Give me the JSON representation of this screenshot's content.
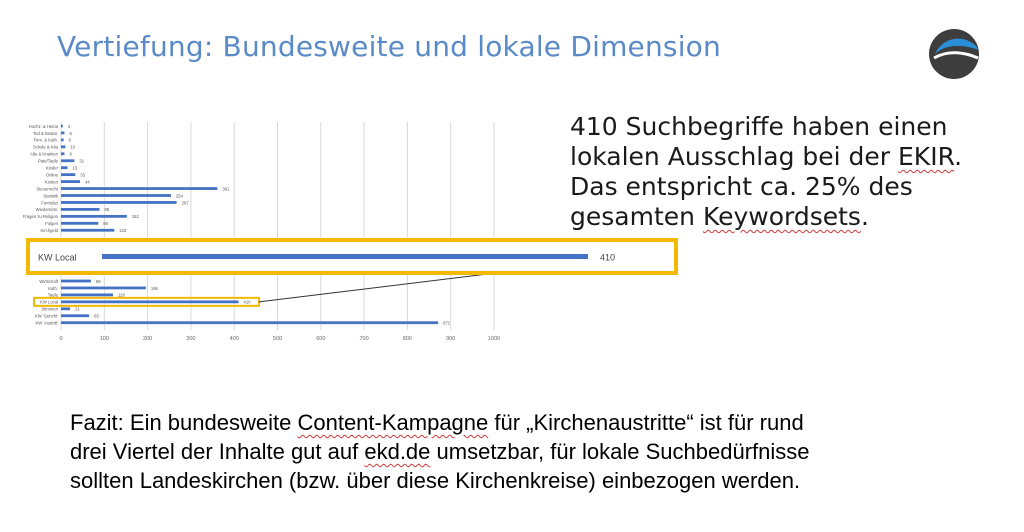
{
  "slide": {
    "title": "Vertiefung: Bundesweite und lokale Dimension",
    "logo": "circle-logo",
    "key_lines": [
      "410 Suchbegriffe haben einen",
      [
        "lokalen Ausschlag bei der ",
        "EKIR",
        "."
      ],
      "Das entspricht ca. 25% des",
      [
        "gesamten ",
        "Keywordsets",
        "."
      ]
    ],
    "fazit_lines": [
      [
        "Fazit: Ein bundesweite ",
        "Content-Kampagne",
        " für „Kirchenaustritte“ ist für rund"
      ],
      [
        "drei Viertel der Inhalte gut auf ",
        "ekd.de",
        " umsetzbar, für lokale Suchbedürfnisse"
      ],
      [
        "sollten Landeskirchen (bzw. über diese Kirchenkreise) einbezogen werden."
      ]
    ]
  },
  "colors": {
    "title": "#5b8ac8",
    "bar": "#4472c4",
    "highlight": "#f5b800",
    "grid": "#d9d9d9",
    "logo_dark": "#3d3d3d",
    "logo_blue": "#2b8fd8"
  },
  "chart_data": {
    "type": "bar",
    "orientation": "horizontal",
    "xlim": [
      0,
      1000
    ],
    "x_ticks": [
      0,
      100,
      200,
      300,
      400,
      500,
      600,
      700,
      800,
      900,
      1000
    ],
    "grid": true,
    "categories": [
      "Hochz. & Heirat",
      "Tod & Bestat.",
      "Firm. & Kath.",
      "Schule & Kita",
      "Alte & Kranken",
      "Pate/Taufe",
      "Kinder",
      "Online",
      "Kosten",
      "Steuerrecht",
      "Statistik",
      "Formular",
      "Wiedereintr.",
      "Fragen zu Religion",
      "Folgen",
      "Kirchgeld",
      "Wirtschaft",
      "Kath.",
      "Taufe",
      "KW Local",
      "Stimmen",
      "KW 'Gericht'",
      "KW 'Austritt'"
    ],
    "values": [
      4,
      8,
      6,
      10,
      8,
      31,
      15,
      33,
      44,
      361,
      254,
      267,
      89,
      152,
      86,
      123,
      69,
      196,
      120,
      410,
      21,
      65,
      871
    ],
    "highlight": {
      "category": "KW Local",
      "label": "KW Local",
      "value": 410
    }
  }
}
